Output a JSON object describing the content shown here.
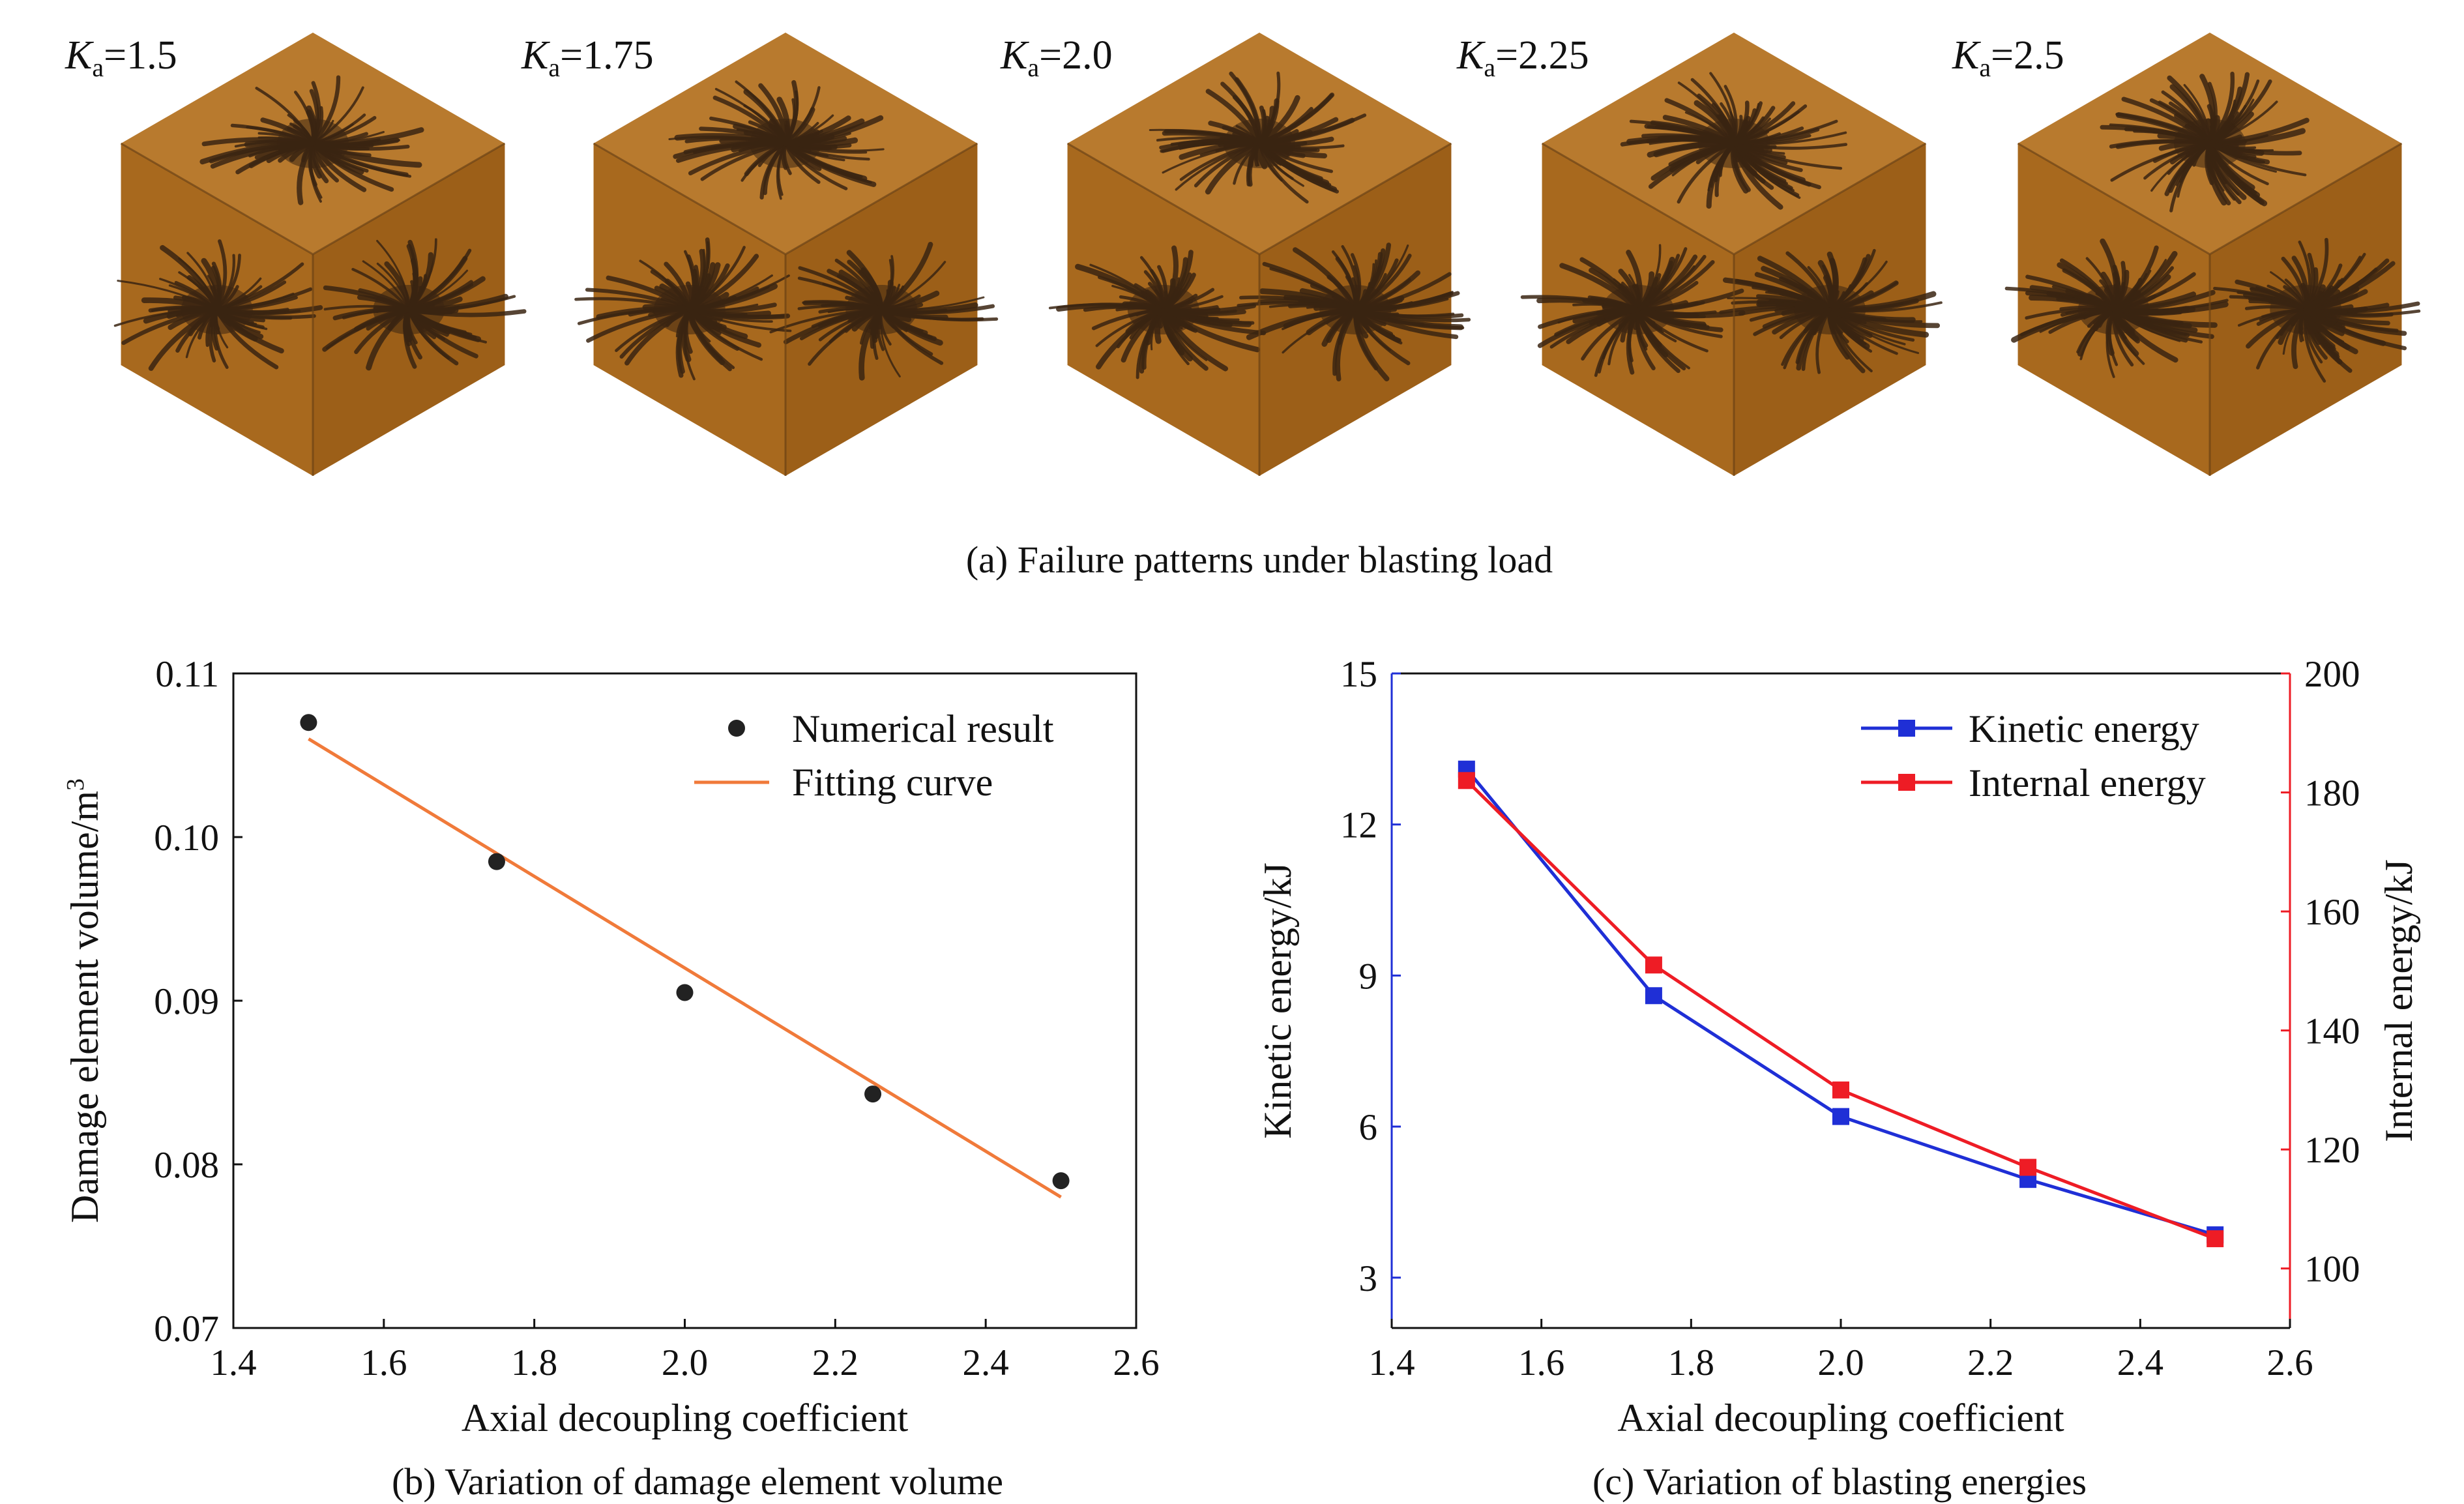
{
  "panel_a": {
    "caption": "(a) Failure patterns under blasting load",
    "cubes": [
      {
        "label_var": "K",
        "label_sub": "a",
        "label_val": "=1.5"
      },
      {
        "label_var": "K",
        "label_sub": "a",
        "label_val": "=1.75"
      },
      {
        "label_var": "K",
        "label_sub": "a",
        "label_val": "=2.0"
      },
      {
        "label_var": "K",
        "label_sub": "a",
        "label_val": "=2.25"
      },
      {
        "label_var": "K",
        "label_sub": "a",
        "label_val": "=2.5"
      }
    ],
    "colors": {
      "face_top": "#b87a2e",
      "face_left": "#a8691e",
      "face_right": "#9c5f18",
      "crack": "#3a2412",
      "edge": "#6b4214"
    }
  },
  "chart_data": [
    {
      "type": "scatter",
      "caption": "(b) Variation of damage element volume",
      "xlabel": "Axial decoupling coefficient",
      "ylabel": "Damage element volume/m³",
      "xlim": [
        1.4,
        2.6
      ],
      "ylim": [
        0.07,
        0.11
      ],
      "xticks": [
        "1.4",
        "1.6",
        "1.8",
        "2.0",
        "2.2",
        "2.4",
        "2.6"
      ],
      "yticks": [
        "0.07",
        "0.08",
        "0.09",
        "0.10",
        "0.11"
      ],
      "legend_position": "top-right",
      "series": [
        {
          "name": "Numerical result",
          "kind": "scatter",
          "color": "#222222",
          "x": [
            1.5,
            1.75,
            2.0,
            2.25,
            2.5
          ],
          "y": [
            0.107,
            0.0985,
            0.0905,
            0.0843,
            0.079
          ]
        },
        {
          "name": "Fitting curve",
          "kind": "line",
          "color": "#f07a3a",
          "x": [
            1.5,
            2.5
          ],
          "y": [
            0.106,
            0.078
          ]
        }
      ]
    },
    {
      "type": "line",
      "caption": "(c) Variation of blasting energies",
      "xlabel": "Axial decoupling coefficient",
      "xlim": [
        1.4,
        2.6
      ],
      "xticks": [
        "1.4",
        "1.6",
        "1.8",
        "2.0",
        "2.2",
        "2.4",
        "2.6"
      ],
      "y_left": {
        "label": "Kinetic energy/kJ",
        "range": [
          2,
          15
        ],
        "ticks": [
          "3",
          "6",
          "9",
          "12",
          "15"
        ],
        "color": "#1f2fd6"
      },
      "y_right": {
        "label": "Internal energy/kJ",
        "range": [
          90,
          200
        ],
        "ticks": [
          "100",
          "120",
          "140",
          "160",
          "180",
          "200"
        ],
        "color": "#ee1c25"
      },
      "legend_position": "top-right",
      "series": [
        {
          "name": "Kinetic energy",
          "axis": "left",
          "color": "#1f2fd6",
          "x": [
            1.5,
            1.75,
            2.0,
            2.25,
            2.5
          ],
          "y": [
            13.1,
            8.6,
            6.2,
            4.95,
            3.85
          ]
        },
        {
          "name": "Internal energy",
          "axis": "right",
          "color": "#ee1c25",
          "x": [
            1.5,
            1.75,
            2.0,
            2.25,
            2.5
          ],
          "y": [
            182,
            151,
            130,
            117,
            105
          ]
        }
      ]
    }
  ]
}
